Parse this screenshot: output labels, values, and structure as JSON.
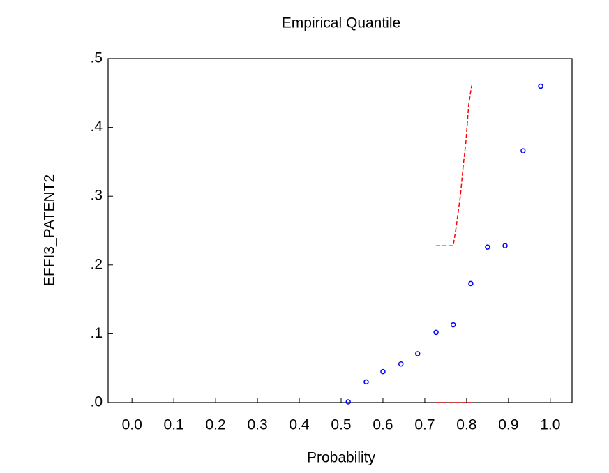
{
  "chart_data": {
    "type": "scatter",
    "title": "Empirical Quantile",
    "x_label": "Probability",
    "y_label": "EFFI3_PATENT2",
    "xlim": [
      -0.057,
      1.052
    ],
    "ylim": [
      0,
      0.5
    ],
    "xticks": [
      {
        "value": 0,
        "label": "0.0"
      },
      {
        "value": 0.1,
        "label": "0.1"
      },
      {
        "value": 0.2,
        "label": "0.2"
      },
      {
        "value": 0.3,
        "label": "0.3"
      },
      {
        "value": 0.4,
        "label": "0.4"
      },
      {
        "value": 0.5,
        "label": "0.5"
      },
      {
        "value": 0.6,
        "label": "0.6"
      },
      {
        "value": 0.7,
        "label": "0.7"
      },
      {
        "value": 0.8,
        "label": "0.8"
      },
      {
        "value": 0.9,
        "label": "0.9"
      },
      {
        "value": 1,
        "label": "1.0"
      }
    ],
    "yticks": [
      {
        "value": 0,
        "label": ".0"
      },
      {
        "value": 0.1,
        "label": ".1"
      },
      {
        "value": 0.2,
        "label": ".2"
      },
      {
        "value": 0.3,
        "label": ".3"
      },
      {
        "value": 0.4,
        "label": ".4"
      },
      {
        "value": 0.5,
        "label": ".5"
      }
    ],
    "series": [
      {
        "color": "#0000ff",
        "style": "marker",
        "x": [
          0.517,
          0.56,
          0.6,
          0.643,
          0.683,
          0.727,
          0.768,
          0.81,
          0.85,
          0.892,
          0.935,
          0.977
        ],
        "values": [
          0.001,
          0.03,
          0.045,
          0.056,
          0.071,
          0.102,
          0.113,
          0.173,
          0.226,
          0.228,
          0.366,
          0.46
        ]
      },
      {
        "color": "#ff0000",
        "style": "dashed",
        "x": [
          0.727,
          0.768,
          0.775,
          0.785,
          0.792,
          0.798,
          0.805,
          0.812
        ],
        "values": [
          0.228,
          0.228,
          0.255,
          0.3,
          0.345,
          0.377,
          0.433,
          0.461
        ]
      },
      {
        "color": "#ff0000",
        "style": "dashed",
        "x": [
          0.727,
          0.812
        ],
        "values": [
          0,
          0
        ]
      }
    ]
  }
}
